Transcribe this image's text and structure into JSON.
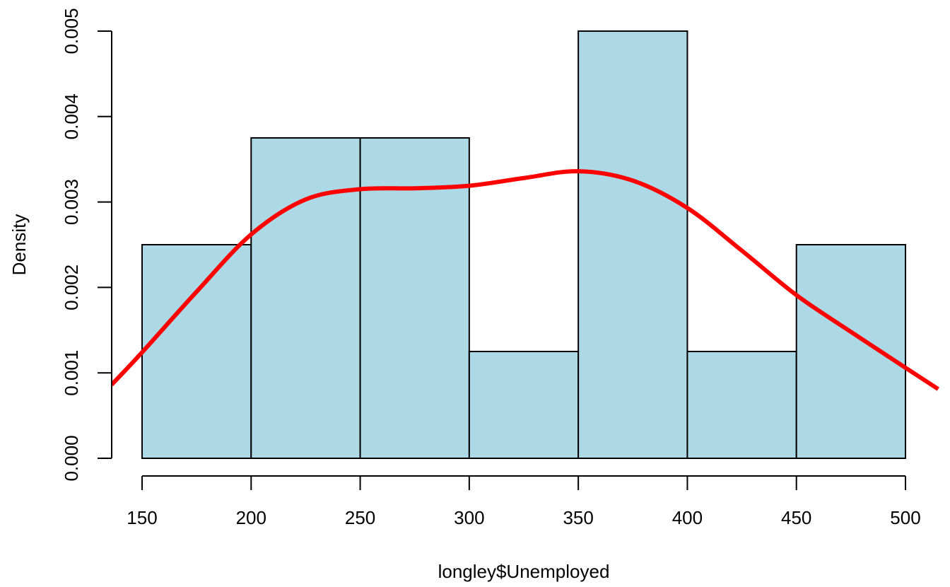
{
  "chart_data": {
    "type": "bar",
    "subtype": "histogram",
    "title": "",
    "xlabel": "longley$Unemployed",
    "ylabel": "Density",
    "bin_edges": [
      150,
      200,
      250,
      300,
      350,
      400,
      450,
      500
    ],
    "values": [
      0.0025,
      0.00375,
      0.00375,
      0.00125,
      0.005,
      0.00125,
      0.0025
    ],
    "xticks": [
      "150",
      "200",
      "250",
      "300",
      "350",
      "400",
      "450",
      "500"
    ],
    "yticks": [
      "0.000",
      "0.001",
      "0.002",
      "0.003",
      "0.004",
      "0.005"
    ],
    "xlim": [
      150,
      500
    ],
    "ylim": [
      0,
      0.005
    ],
    "grid": false,
    "bar_color": "#add8e6",
    "bar_edge_color": "#000000",
    "density_curve": {
      "color": "#ff0000",
      "x": [
        136,
        150,
        175,
        200,
        225,
        250,
        275,
        300,
        325,
        350,
        375,
        400,
        425,
        450,
        475,
        500,
        515
      ],
      "y": [
        0.00086,
        0.00124,
        0.00195,
        0.00262,
        0.00303,
        0.00315,
        0.00316,
        0.00319,
        0.00328,
        0.00336,
        0.00325,
        0.00293,
        0.00243,
        0.00191,
        0.00148,
        0.00106,
        0.00081
      ]
    }
  }
}
